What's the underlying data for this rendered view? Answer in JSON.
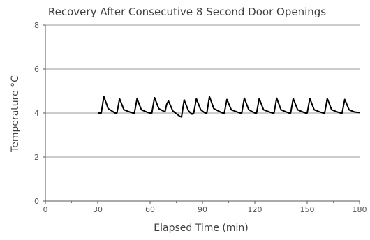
{
  "chart_data": {
    "type": "line",
    "title": "Recovery After Consecutive 8 Second Door Openings",
    "xlabel": "Elapsed Time (min)",
    "ylabel": "Temperature °C",
    "xlim": [
      0,
      180
    ],
    "ylim": [
      0,
      8
    ],
    "x_ticks": [
      "0",
      "30",
      "60",
      "90",
      "120",
      "150",
      "180"
    ],
    "y_ticks": [
      "0",
      "2",
      "4",
      "6",
      "8"
    ],
    "grid": "horizontal",
    "legend": "none",
    "series": [
      {
        "color": "#000000",
        "x": [
          30.5,
          32.0,
          33.5,
          36.0,
          40.0,
          41.0,
          42.5,
          45.0,
          50.0,
          51.0,
          52.5,
          55.0,
          59.5,
          61.0,
          62.5,
          65.0,
          68.5,
          69.5,
          70.5,
          73.0,
          77.0,
          78.0,
          79.5,
          82.0,
          84.0,
          85.0,
          86.5,
          89.0,
          91.5,
          92.5,
          94.0,
          96.5,
          101.5,
          102.5,
          104.0,
          106.5,
          111.5,
          112.5,
          114.0,
          116.5,
          120.0,
          121.0,
          122.5,
          125.0,
          130.0,
          131.0,
          132.5,
          135.0,
          139.5,
          140.5,
          142.0,
          144.5,
          149.0,
          150.0,
          151.5,
          154.0,
          159.0,
          160.0,
          161.5,
          164.0,
          169.0,
          170.0,
          171.5,
          174.0,
          177.0,
          180.0
        ],
        "y": [
          4.0,
          4.0,
          4.75,
          4.2,
          4.0,
          4.0,
          4.65,
          4.15,
          4.0,
          4.0,
          4.65,
          4.15,
          4.0,
          4.0,
          4.7,
          4.2,
          4.05,
          4.4,
          4.55,
          4.1,
          3.85,
          3.82,
          4.6,
          4.1,
          3.95,
          4.0,
          4.65,
          4.15,
          4.0,
          4.0,
          4.75,
          4.2,
          4.0,
          4.0,
          4.62,
          4.15,
          4.0,
          4.0,
          4.68,
          4.15,
          4.0,
          4.0,
          4.66,
          4.15,
          4.0,
          4.0,
          4.68,
          4.15,
          4.0,
          4.0,
          4.66,
          4.15,
          4.0,
          4.0,
          4.66,
          4.15,
          4.0,
          4.0,
          4.66,
          4.15,
          4.0,
          4.0,
          4.62,
          4.15,
          4.05,
          4.02
        ]
      }
    ]
  }
}
